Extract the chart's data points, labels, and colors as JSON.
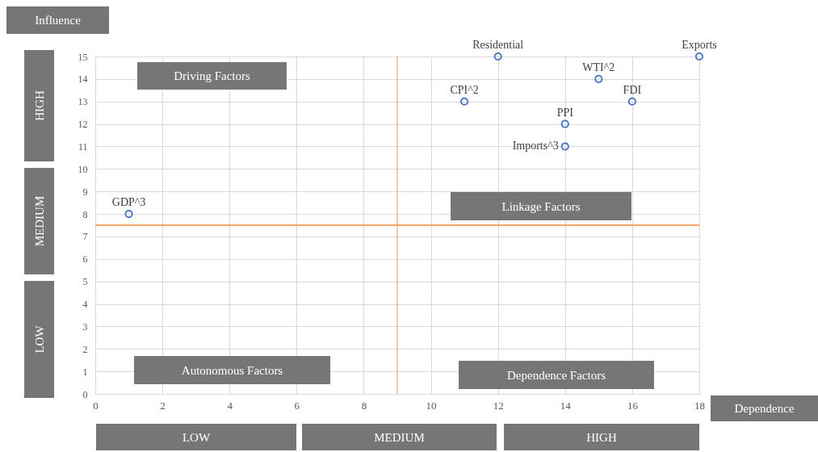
{
  "chart_data": {
    "type": "scatter",
    "xlabel": "Dependence",
    "ylabel": "Influence",
    "x": [
      12,
      18,
      15,
      11,
      16,
      14,
      14,
      1
    ],
    "values": [
      15,
      15,
      14,
      13,
      13,
      12,
      11,
      8
    ],
    "color": "#4472c4",
    "marker": "circle",
    "xlim": [
      0,
      18
    ],
    "ylim": [
      0,
      15
    ],
    "xticks": [
      0,
      2,
      4,
      6,
      8,
      10,
      12,
      14,
      16,
      18
    ],
    "yticks": [
      0,
      1,
      2,
      3,
      4,
      5,
      6,
      7,
      8,
      9,
      10,
      11,
      12,
      13,
      14,
      15
    ],
    "grid": true,
    "ref_lines": [
      {
        "axis": "x",
        "value": 9,
        "color": "#f4a46b"
      },
      {
        "axis": "y",
        "value": 7.5,
        "color": "#f4a46b"
      }
    ],
    "annotations": [
      {
        "text": "Residential",
        "x": 12,
        "y": 15
      },
      {
        "text": "Exports",
        "x": 18,
        "y": 15
      },
      {
        "text": "WTI^2",
        "x": 15,
        "y": 14
      },
      {
        "text": "CPI^2",
        "x": 11,
        "y": 13
      },
      {
        "text": "FDI",
        "x": 16,
        "y": 13
      },
      {
        "text": "PPI",
        "x": 14,
        "y": 12
      },
      {
        "text": "Imports^3",
        "x": 14,
        "y": 11
      },
      {
        "text": "GDP^3",
        "x": 1,
        "y": 8
      },
      "Driving Factors",
      "Linkage Factors",
      "Autonomous Factors",
      "Dependence Factors",
      "HIGH",
      "MEDIUM",
      "LOW",
      "LOW",
      "MEDIUM",
      "HIGH"
    ]
  }
}
